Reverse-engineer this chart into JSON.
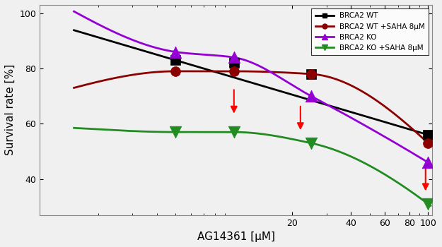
{
  "title": "",
  "xlabel": "AG14361 [μM]",
  "ylabel": "Survival rate [%]",
  "xlim": [
    1,
    105
  ],
  "ylim": [
    27,
    103
  ],
  "yticks": [
    40,
    60,
    80,
    100
  ],
  "xticks": [
    20,
    40,
    60,
    80,
    100
  ],
  "series": [
    {
      "label": "BRCA2 WT",
      "color": "#000000",
      "marker": "s",
      "markersize": 5,
      "data_x": [
        5,
        10,
        25,
        100
      ],
      "data_y": [
        83,
        82,
        78,
        56
      ]
    },
    {
      "label": "BRCA2 WT +SAHA 8μM",
      "color": "#8B0000",
      "marker": "o",
      "markersize": 5,
      "data_x": [
        5,
        10,
        25,
        100
      ],
      "data_y": [
        79,
        79,
        78,
        53
      ]
    },
    {
      "label": "BRCA2 KO",
      "color": "#9400D3",
      "marker": "^",
      "markersize": 6,
      "data_x": [
        5,
        10,
        25,
        100
      ],
      "data_y": [
        86,
        84,
        70,
        46
      ]
    },
    {
      "label": "BRCA2 KO +SAHA 8μM",
      "color": "#228B22",
      "marker": "v",
      "markersize": 6,
      "data_x": [
        5,
        10,
        25,
        100
      ],
      "data_y": [
        57,
        57,
        53,
        31
      ]
    }
  ],
  "arrows": [
    {
      "x": 10,
      "y_tip": 63,
      "y_tail": 73,
      "color": "red"
    },
    {
      "x": 22,
      "y_tip": 57,
      "y_tail": 67,
      "color": "red"
    },
    {
      "x": 97,
      "y_tip": 35,
      "y_tail": 45,
      "color": "red"
    }
  ],
  "legend_loc": "upper right",
  "background_color": "#f0f0f0"
}
